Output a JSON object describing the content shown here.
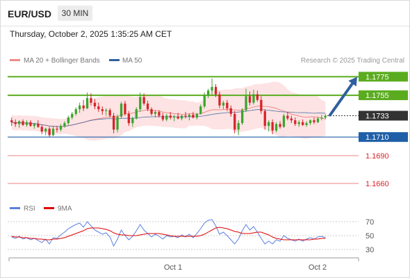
{
  "header": {
    "symbol": "EUR/USD",
    "timeframe": "30 MIN"
  },
  "datetime": "Thursday, October 2, 2025 1:35:25 AM CET",
  "credit": "Research © 2025 Trading Central",
  "colors": {
    "up": "#3aa52e",
    "down": "#d8232a",
    "ma20": "#f08a8a",
    "band_fill": "#fde3e3",
    "ma50": "#2f5f9e",
    "resistance": "#5aac1e",
    "support": "#1f5fa8",
    "lower_lines": "#f2a5a5",
    "current": "#333333",
    "arrow": "#2f5fa0",
    "rsi": "#5b7fe0",
    "rsi_ma": "#e00000"
  },
  "chart_data": [
    {
      "type": "candlestick",
      "title": "",
      "legend": [
        {
          "name": "MA 20 + Bollinger Bands",
          "color": "#f08a8a"
        },
        {
          "name": "MA 50",
          "color": "#2f5f9e"
        }
      ],
      "legend_placement": "top-left",
      "x_ticks": [
        "Oct 1",
        "Oct 2"
      ],
      "y_range": [
        1.1645,
        1.1785
      ],
      "grid": false,
      "levels": [
        {
          "label": "1.1775",
          "value": 1.1775,
          "role": "resistance"
        },
        {
          "label": "1.1755",
          "value": 1.1755,
          "role": "resistance"
        },
        {
          "label": "1.1733",
          "value": 1.1733,
          "role": "current"
        },
        {
          "label": "1.1710",
          "value": 1.171,
          "role": "support"
        },
        {
          "label": "1.1690",
          "value": 1.169,
          "role": "support"
        },
        {
          "label": "1.1660",
          "value": 1.166,
          "role": "support"
        }
      ],
      "projection": {
        "from": 1.1733,
        "to": 1.1775,
        "direction": "up"
      },
      "candles": [
        [
          1.1728,
          1.1731,
          1.1722,
          1.1726
        ],
        [
          1.1726,
          1.1729,
          1.1721,
          1.1724
        ],
        [
          1.1724,
          1.1728,
          1.172,
          1.1727
        ],
        [
          1.1727,
          1.1729,
          1.1722,
          1.1723
        ],
        [
          1.1723,
          1.1728,
          1.1721,
          1.1726
        ],
        [
          1.1726,
          1.1728,
          1.1721,
          1.1722
        ],
        [
          1.1722,
          1.1725,
          1.1719,
          1.1724
        ],
        [
          1.1724,
          1.1728,
          1.172,
          1.1721
        ],
        [
          1.1721,
          1.1723,
          1.1713,
          1.1716
        ],
        [
          1.1716,
          1.172,
          1.1712,
          1.1719
        ],
        [
          1.1719,
          1.1721,
          1.171,
          1.1712
        ],
        [
          1.1712,
          1.1722,
          1.1711,
          1.1719
        ],
        [
          1.1719,
          1.1722,
          1.1715,
          1.1718
        ],
        [
          1.1718,
          1.1724,
          1.1716,
          1.1722
        ],
        [
          1.1722,
          1.1727,
          1.172,
          1.1725
        ],
        [
          1.1725,
          1.1733,
          1.1723,
          1.1731
        ],
        [
          1.1731,
          1.1737,
          1.1729,
          1.1735
        ],
        [
          1.1735,
          1.1742,
          1.1733,
          1.174
        ],
        [
          1.174,
          1.1747,
          1.1736,
          1.1744
        ],
        [
          1.1744,
          1.175,
          1.1738,
          1.1741
        ],
        [
          1.1741,
          1.1758,
          1.174,
          1.1752
        ],
        [
          1.1752,
          1.1757,
          1.1744,
          1.1747
        ],
        [
          1.1747,
          1.1751,
          1.174,
          1.1743
        ],
        [
          1.1743,
          1.1747,
          1.1737,
          1.174
        ],
        [
          1.174,
          1.1743,
          1.1734,
          1.1738
        ],
        [
          1.1738,
          1.1741,
          1.1733,
          1.1739
        ],
        [
          1.1739,
          1.1741,
          1.1731,
          1.1733
        ],
        [
          1.1733,
          1.1736,
          1.1714,
          1.1718
        ],
        [
          1.1718,
          1.1734,
          1.1715,
          1.1732
        ],
        [
          1.1732,
          1.1748,
          1.173,
          1.1746
        ],
        [
          1.1746,
          1.1749,
          1.1733,
          1.1735
        ],
        [
          1.1735,
          1.1738,
          1.1722,
          1.1725
        ],
        [
          1.1725,
          1.1732,
          1.1721,
          1.173
        ],
        [
          1.173,
          1.1742,
          1.1729,
          1.174
        ],
        [
          1.174,
          1.1758,
          1.1737,
          1.1753
        ],
        [
          1.1753,
          1.1757,
          1.1744,
          1.1746
        ],
        [
          1.1746,
          1.1749,
          1.1738,
          1.174
        ],
        [
          1.174,
          1.1742,
          1.1733,
          1.1735
        ],
        [
          1.1735,
          1.1739,
          1.1731,
          1.1737
        ],
        [
          1.1737,
          1.1739,
          1.1731,
          1.1733
        ],
        [
          1.1733,
          1.1736,
          1.1727,
          1.1729
        ],
        [
          1.1729,
          1.1735,
          1.1727,
          1.1733
        ],
        [
          1.1733,
          1.1737,
          1.1729,
          1.1731
        ],
        [
          1.1731,
          1.1734,
          1.1727,
          1.1732
        ],
        [
          1.1732,
          1.1736,
          1.1729,
          1.173
        ],
        [
          1.173,
          1.1734,
          1.1728,
          1.1733
        ],
        [
          1.1733,
          1.1737,
          1.173,
          1.1732
        ],
        [
          1.1732,
          1.1735,
          1.1728,
          1.1734
        ],
        [
          1.1734,
          1.1737,
          1.173,
          1.1731
        ],
        [
          1.1731,
          1.1736,
          1.1729,
          1.1735
        ],
        [
          1.1735,
          1.1745,
          1.1734,
          1.1743
        ],
        [
          1.1743,
          1.1758,
          1.1741,
          1.1755
        ],
        [
          1.1755,
          1.1762,
          1.1752,
          1.176
        ],
        [
          1.176,
          1.1773,
          1.1755,
          1.1764
        ],
        [
          1.1764,
          1.1767,
          1.1753,
          1.1756
        ],
        [
          1.1756,
          1.1759,
          1.1741,
          1.1744
        ],
        [
          1.1744,
          1.1749,
          1.174,
          1.1747
        ],
        [
          1.1747,
          1.175,
          1.1738,
          1.1741
        ],
        [
          1.1741,
          1.1744,
          1.1732,
          1.1735
        ],
        [
          1.1735,
          1.1738,
          1.1714,
          1.1718
        ],
        [
          1.1718,
          1.1728,
          1.1712,
          1.1725
        ],
        [
          1.1725,
          1.1741,
          1.1723,
          1.1739
        ],
        [
          1.1739,
          1.1762,
          1.1737,
          1.1754
        ],
        [
          1.1754,
          1.1759,
          1.1744,
          1.1747
        ],
        [
          1.1747,
          1.1761,
          1.1745,
          1.1756
        ],
        [
          1.1756,
          1.176,
          1.1748,
          1.175
        ],
        [
          1.175,
          1.1754,
          1.1735,
          1.1738
        ],
        [
          1.1738,
          1.174,
          1.1718,
          1.1722
        ],
        [
          1.1722,
          1.1728,
          1.1716,
          1.1726
        ],
        [
          1.1726,
          1.1729,
          1.1713,
          1.1717
        ],
        [
          1.1717,
          1.1726,
          1.1715,
          1.1724
        ],
        [
          1.1724,
          1.1727,
          1.1719,
          1.1721
        ],
        [
          1.1721,
          1.1735,
          1.172,
          1.1733
        ],
        [
          1.1733,
          1.1737,
          1.1728,
          1.173
        ],
        [
          1.173,
          1.1733,
          1.1725,
          1.1728
        ],
        [
          1.1728,
          1.1731,
          1.1722,
          1.1724
        ],
        [
          1.1724,
          1.1728,
          1.1721,
          1.1726
        ],
        [
          1.1726,
          1.1729,
          1.1722,
          1.1723
        ],
        [
          1.1723,
          1.1727,
          1.1721,
          1.1725
        ],
        [
          1.1725,
          1.1729,
          1.1723,
          1.1728
        ],
        [
          1.1728,
          1.1731,
          1.1724,
          1.1726
        ],
        [
          1.1726,
          1.1732,
          1.1725,
          1.173
        ],
        [
          1.173,
          1.1734,
          1.1728,
          1.1731
        ],
        [
          1.1731,
          1.1735,
          1.1729,
          1.1733
        ]
      ]
    },
    {
      "type": "line",
      "title": "",
      "legend": [
        {
          "name": "RSI",
          "color": "#5b7fe0"
        },
        {
          "name": "9MA",
          "color": "#e00000"
        }
      ],
      "legend_placement": "top-left",
      "y_ticks": [
        70,
        50,
        30
      ],
      "y_range": [
        20,
        80
      ],
      "grid": false,
      "series": [
        {
          "name": "RSI",
          "values": [
            48,
            46,
            49,
            45,
            47,
            44,
            46,
            43,
            40,
            45,
            38,
            47,
            46,
            51,
            55,
            60,
            63,
            66,
            68,
            62,
            70,
            64,
            58,
            55,
            52,
            54,
            48,
            35,
            45,
            58,
            50,
            44,
            49,
            57,
            66,
            58,
            53,
            48,
            52,
            49,
            45,
            50,
            48,
            49,
            47,
            51,
            48,
            52,
            47,
            53,
            60,
            68,
            72,
            73,
            64,
            52,
            55,
            50,
            44,
            38,
            45,
            57,
            66,
            58,
            63,
            55,
            46,
            38,
            42,
            38,
            44,
            42,
            50,
            46,
            44,
            42,
            45,
            42,
            45,
            47,
            45,
            48,
            49,
            47
          ]
        },
        {
          "name": "9MA",
          "values": [
            49,
            48,
            48,
            47,
            47,
            46,
            46,
            45,
            45,
            44,
            44,
            45,
            45,
            46,
            47,
            49,
            51,
            53,
            55,
            57,
            60,
            61,
            61,
            61,
            60,
            59,
            57,
            54,
            52,
            51,
            51,
            50,
            50,
            50,
            51,
            52,
            53,
            53,
            53,
            53,
            52,
            51,
            50,
            49,
            49,
            49,
            49,
            49,
            49,
            49,
            50,
            52,
            55,
            58,
            61,
            62,
            61,
            60,
            58,
            56,
            55,
            53,
            53,
            53,
            54,
            55,
            55,
            53,
            51,
            48,
            46,
            45,
            44,
            44,
            44,
            44,
            44,
            44,
            44,
            44,
            45,
            45,
            46,
            46
          ]
        }
      ]
    }
  ]
}
